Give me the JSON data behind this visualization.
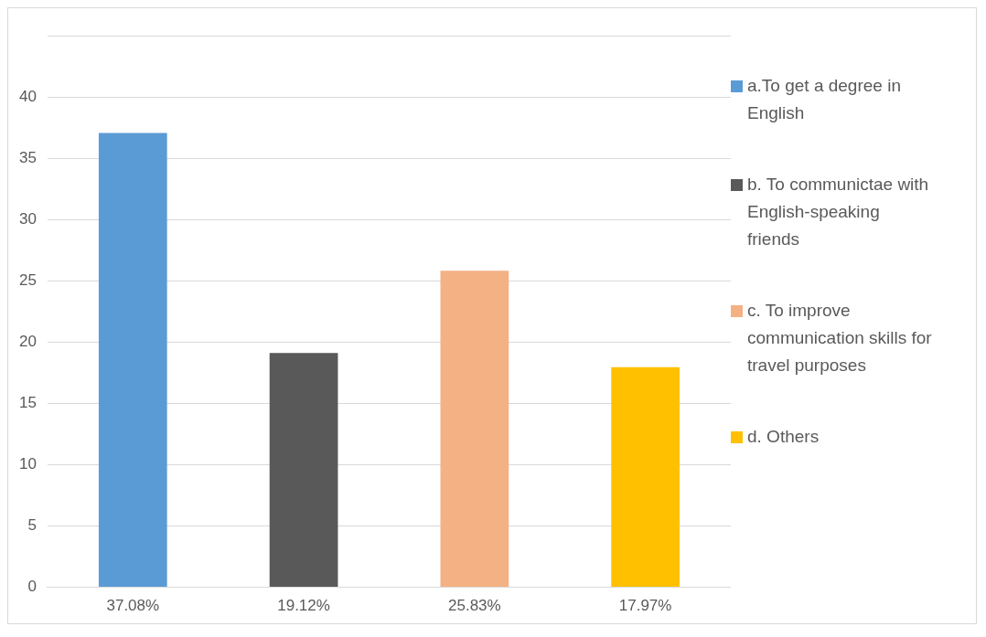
{
  "chart_data": {
    "type": "bar",
    "categories": [
      "37.08%",
      "19.12%",
      "25.83%",
      "17.97%"
    ],
    "series": [
      {
        "name": "a.To get a degree in English",
        "color": "#5b9bd5",
        "values": [
          37.08,
          null,
          null,
          null
        ]
      },
      {
        "name": "b. To communictae with English-speaking friends",
        "color": "#595959",
        "values": [
          null,
          19.12,
          null,
          null
        ]
      },
      {
        "name": "c. To improve communication skills for travel purposes",
        "color": "#f4b183",
        "values": [
          null,
          null,
          25.83,
          null
        ]
      },
      {
        "name": "d. Others",
        "color": "#ffc000",
        "values": [
          null,
          null,
          null,
          17.97
        ]
      }
    ],
    "ylim": [
      0,
      45
    ],
    "yticks": [
      0,
      5,
      10,
      15,
      20,
      25,
      30,
      35,
      40,
      {
        "value": 45,
        "label": null
      }
    ],
    "grid": "y",
    "legend": "right"
  }
}
